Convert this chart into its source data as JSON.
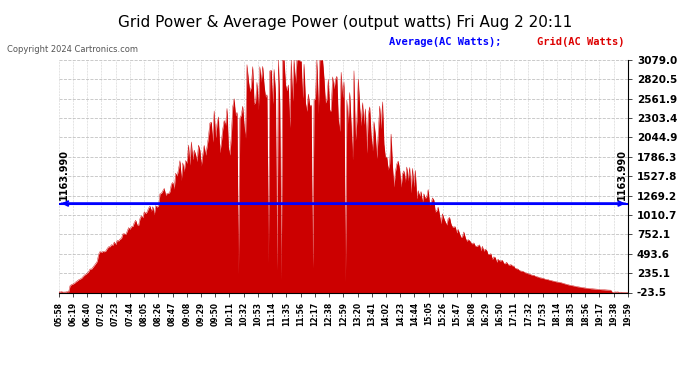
{
  "title": "Grid Power & Average Power (output watts) Fri Aug 2 20:11",
  "copyright": "Copyright 2024 Cartronics.com",
  "legend_avg": "Average(AC Watts)",
  "legend_grid": "Grid(AC Watts)",
  "avg_value": 1163.99,
  "ymin": -23.5,
  "ymax": 3079.0,
  "yticks": [
    3079.0,
    2820.5,
    2561.9,
    2303.4,
    2044.9,
    1786.3,
    1527.8,
    1269.2,
    1010.7,
    752.1,
    493.6,
    235.1,
    -23.5
  ],
  "bg_color": "#ffffff",
  "fill_color": "#cc0000",
  "line_color": "#cc0000",
  "avg_line_color": "#0000ff",
  "grid_color": "#bbbbbb",
  "title_color": "#000000",
  "avg_label_color": "#0000ff",
  "grid_label_color": "#dd0000",
  "x_labels": [
    "05:58",
    "06:19",
    "06:40",
    "07:02",
    "07:23",
    "07:44",
    "08:05",
    "08:26",
    "08:47",
    "09:08",
    "09:29",
    "09:50",
    "10:11",
    "10:32",
    "10:53",
    "11:14",
    "11:35",
    "11:56",
    "12:17",
    "12:38",
    "12:59",
    "13:20",
    "13:41",
    "14:02",
    "14:23",
    "14:44",
    "15:05",
    "15:26",
    "15:47",
    "16:08",
    "16:29",
    "16:50",
    "17:11",
    "17:32",
    "17:53",
    "18:14",
    "18:35",
    "18:56",
    "19:17",
    "19:38",
    "19:59"
  ],
  "num_points": 400
}
